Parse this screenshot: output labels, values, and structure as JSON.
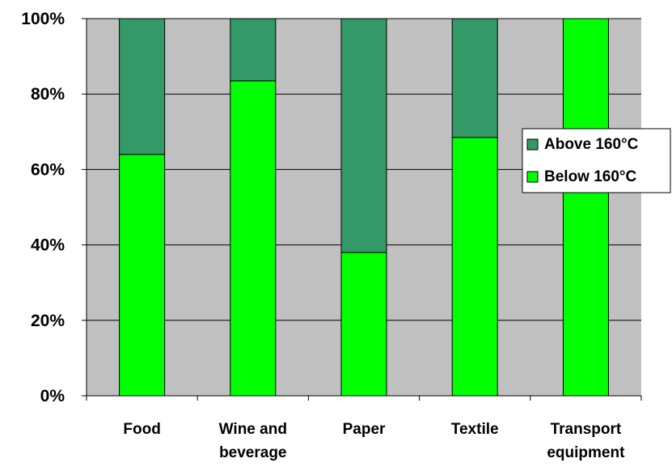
{
  "chart_data": {
    "type": "bar",
    "stacked": true,
    "categories": [
      "Food",
      "Wine and beverage",
      "Paper",
      "Textile",
      "Transport equipment"
    ],
    "category_lines": [
      [
        "Food"
      ],
      [
        "Wine and",
        "beverage"
      ],
      [
        "Paper"
      ],
      [
        "Textile"
      ],
      [
        "Transport",
        "equipment"
      ]
    ],
    "series": [
      {
        "name": "Below 160°C",
        "values": [
          64,
          83.5,
          38,
          68.5,
          100
        ],
        "color": "#00ff00"
      },
      {
        "name": "Above 160°C",
        "values": [
          36,
          16.5,
          62,
          31.5,
          0
        ],
        "color": "#339966"
      }
    ],
    "ylim": [
      0,
      100
    ],
    "yticks": [
      0,
      20,
      40,
      60,
      80,
      100
    ],
    "ytick_labels": [
      "0%",
      "20%",
      "40%",
      "60%",
      "80%",
      "100%"
    ],
    "title": "",
    "xlabel": "",
    "ylabel": "",
    "grid": true,
    "plot_background": "#c0c0c0",
    "legend": {
      "placement": "right",
      "entries": [
        "Above 160°C",
        "Below 160°C"
      ]
    }
  }
}
